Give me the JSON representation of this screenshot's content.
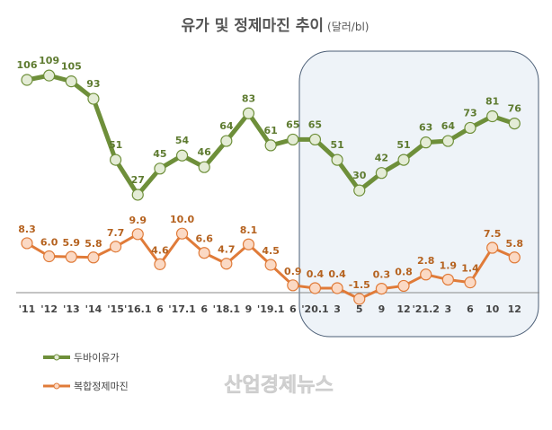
{
  "chart_data": {
    "type": "line",
    "title": "유가 및 정제마진 추이",
    "unit": "(달러/bl)",
    "categories": [
      "'11",
      "'12",
      "'13",
      "'14",
      "'15",
      "'16.1",
      "6",
      "'17.1",
      "6",
      "'18.1",
      "9",
      "'19.1",
      "6",
      "'20.1",
      "3",
      "5",
      "9",
      "12",
      "'21.2",
      "3",
      "6",
      "10",
      "12"
    ],
    "series": [
      {
        "name": "두바이유가",
        "color": "#6e8f3a",
        "values": [
          106,
          109,
          105,
          93,
          51,
          27,
          45,
          54,
          46,
          64,
          83,
          61,
          65,
          65,
          51,
          30,
          42,
          51,
          63,
          64,
          73,
          81,
          76
        ]
      },
      {
        "name": "복합정제마진",
        "color": "#e07b39",
        "values": [
          8.3,
          6.0,
          5.9,
          5.8,
          7.7,
          9.9,
          4.6,
          10.0,
          6.6,
          4.7,
          8.1,
          4.5,
          0.9,
          0.4,
          0.4,
          -1.5,
          0.3,
          0.8,
          2.8,
          1.9,
          1.4,
          7.5,
          5.8
        ]
      }
    ],
    "highlight_from": "'20.1",
    "legend": "bottom-left",
    "grid": false
  },
  "watermark": "산업경제뉴스"
}
